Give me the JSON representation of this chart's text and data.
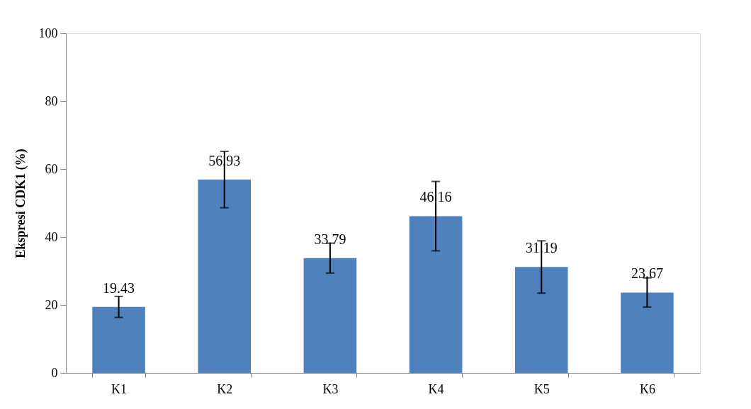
{
  "chart_data": {
    "type": "bar",
    "ylabel": "Ekspresi CDK1 (%)",
    "categories": [
      "K1",
      "K2",
      "K3",
      "K4",
      "K5",
      "K6"
    ],
    "values": [
      19.43,
      56.93,
      33.79,
      46.16,
      31.19,
      23.67
    ],
    "errors": [
      3.1,
      8.3,
      4.4,
      10.2,
      7.7,
      4.3
    ],
    "color": "#4f81bd",
    "ylim": [
      0,
      100
    ],
    "yticks": [
      0,
      20,
      40,
      60,
      80,
      100
    ],
    "grid": false,
    "data_labels": true
  }
}
